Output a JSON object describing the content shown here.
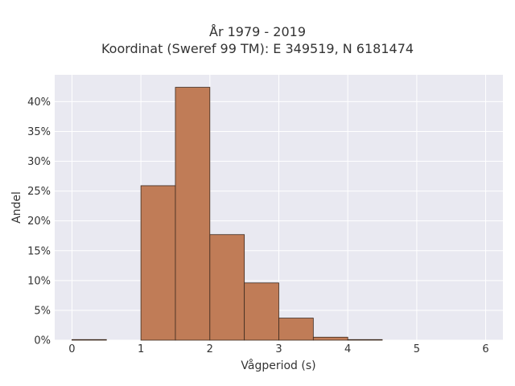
{
  "chart_data": {
    "type": "bar",
    "title_lines": [
      "År 1979 - 2019",
      "Koordinat (Sweref 99 TM): E 349519, N 6181474"
    ],
    "xlabel": "Vågperiod (s)",
    "ylabel": "Andel",
    "xlim": [
      -0.25,
      6.25
    ],
    "ylim": [
      0,
      44.5
    ],
    "x_ticks": [
      0,
      1,
      2,
      3,
      4,
      5,
      6
    ],
    "y_ticks": [
      0,
      5,
      10,
      15,
      20,
      25,
      30,
      35,
      40
    ],
    "y_tick_format": "percent",
    "bin_width": 0.5,
    "bins": [
      {
        "start": 0.0,
        "end": 0.5,
        "value": 0.1
      },
      {
        "start": 0.5,
        "end": 1.0,
        "value": 0.0
      },
      {
        "start": 1.0,
        "end": 1.5,
        "value": 25.9
      },
      {
        "start": 1.5,
        "end": 2.0,
        "value": 42.4
      },
      {
        "start": 2.0,
        "end": 2.5,
        "value": 17.7
      },
      {
        "start": 2.5,
        "end": 3.0,
        "value": 9.6
      },
      {
        "start": 3.0,
        "end": 3.5,
        "value": 3.7
      },
      {
        "start": 3.5,
        "end": 4.0,
        "value": 0.5
      },
      {
        "start": 4.0,
        "end": 4.5,
        "value": 0.1
      }
    ],
    "grid": true,
    "colors": {
      "bar_fill": "#c07c57",
      "bar_edge": "#3d2a1e",
      "plot_background": "#e9e9f1",
      "grid": "#ffffff"
    }
  }
}
